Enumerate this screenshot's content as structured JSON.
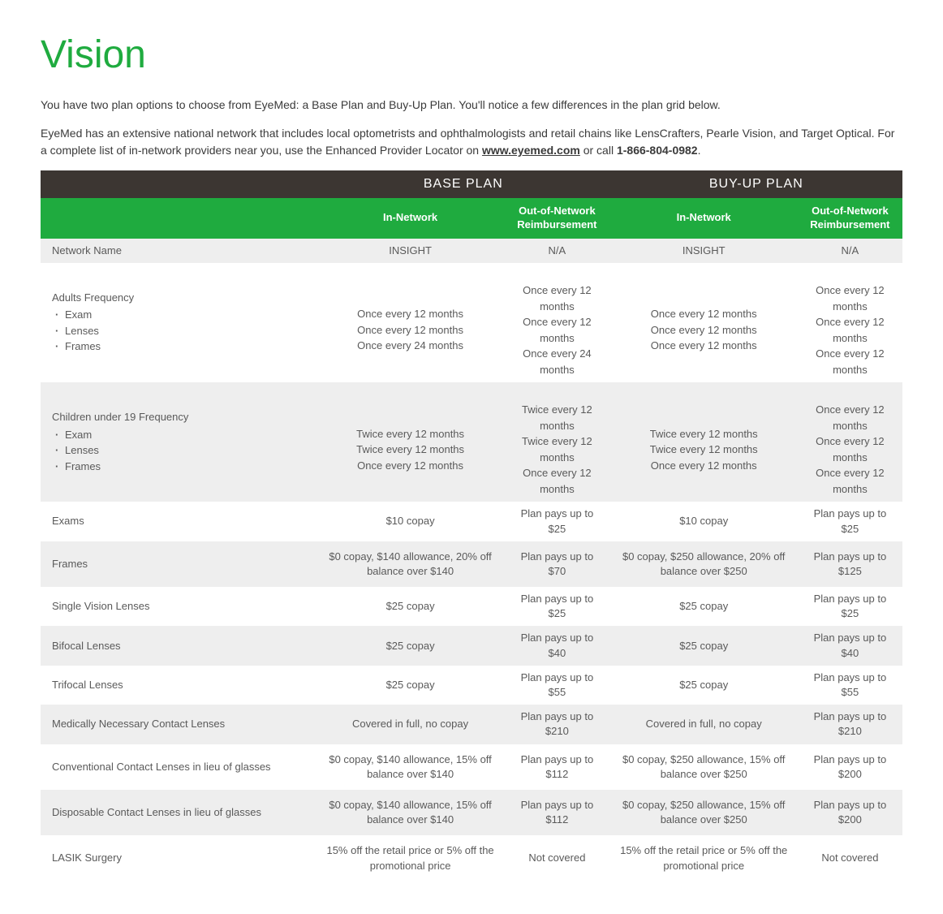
{
  "colors": {
    "title": "#1fab3f",
    "header_dark": "#3c3632",
    "header_green": "#1fab3f",
    "text": "#3a3a3a",
    "row_odd": "#eeeeee",
    "row_even": "#ffffff"
  },
  "title": "Vision",
  "intro": {
    "p1": "You have two plan options to choose from EyeMed: a Base Plan and Buy-Up Plan. You'll notice a few differences in the plan grid below.",
    "p2_a": "EyeMed has an extensive national network that includes local optometrists and ophthalmologists and retail chains like LensCrafters, Pearle Vision, and Target Optical. For a complete list of in-network providers near you, use the Enhanced Provider Locator on ",
    "link": "www.eyemed.com",
    "p2_b": " or call ",
    "phone": "1-866-804-0982",
    "p2_c": "."
  },
  "table": {
    "plan_headers": [
      "",
      "BASE PLAN",
      "BUY-UP PLAN"
    ],
    "sub_headers": [
      "",
      "In-Network",
      "Out-of-Network Reimbursement",
      "In-Network",
      "Out-of-Network Reimbursement"
    ],
    "rows": [
      {
        "label": "Network Name",
        "cells": [
          "INSIGHT",
          "N/A",
          "INSIGHT",
          "N/A"
        ],
        "cls": "odd"
      },
      {
        "label": "Adults Frequency",
        "sub": [
          "Exam",
          "Lenses",
          "Frames"
        ],
        "cells": [
          [
            "Once every 12 months",
            "Once every 12 months",
            "Once every 24 months"
          ],
          [
            "Once every 12 months",
            "Once every 12 months",
            "Once every 24 months"
          ],
          [
            "Once every 12 months",
            "Once every 12 months",
            "Once every 12 months"
          ],
          [
            "Once every 12 months",
            "Once every 12 months",
            "Once every 12 months"
          ]
        ],
        "cls": "even"
      },
      {
        "label": "Children under 19 Frequency",
        "sub": [
          "Exam",
          "Lenses",
          "Frames"
        ],
        "cells": [
          [
            "Twice every 12 months",
            "Twice every 12 months",
            "Once every 12 months"
          ],
          [
            "Twice every 12 months",
            "Twice every 12 months",
            "Once every 12 months"
          ],
          [
            "Twice every 12 months",
            "Twice every 12 months",
            "Once every 12 months"
          ],
          [
            "Once every 12 months",
            "Once every 12 months",
            "Once every 12 months"
          ]
        ],
        "cls": "odd"
      },
      {
        "label": "Exams",
        "cells": [
          "$10 copay",
          "Plan pays up to $25",
          "$10 copay",
          "Plan pays up to $25"
        ],
        "cls": "even"
      },
      {
        "label": "Frames",
        "cells": [
          "$0 copay, $140 allowance, 20% off balance over $140",
          "Plan pays up to $70",
          "$0 copay, $250 allowance, 20% off balance over $250",
          "Plan pays up to $125"
        ],
        "cls": "odd",
        "tall": true
      },
      {
        "label": "Single Vision Lenses",
        "cells": [
          "$25 copay",
          "Plan pays up to $25",
          "$25 copay",
          "Plan pays up to $25"
        ],
        "cls": "even"
      },
      {
        "label": "Bifocal Lenses",
        "cells": [
          "$25 copay",
          "Plan pays up to $40",
          "$25 copay",
          "Plan pays up to $40"
        ],
        "cls": "odd"
      },
      {
        "label": "Trifocal Lenses",
        "cells": [
          "$25 copay",
          "Plan pays up to $55",
          "$25 copay",
          "Plan pays up to $55"
        ],
        "cls": "even"
      },
      {
        "label": "Medically Necessary Contact Lenses",
        "cells": [
          "Covered in full, no copay",
          "Plan pays up to $210",
          "Covered in full, no copay",
          "Plan pays up to $210"
        ],
        "cls": "odd"
      },
      {
        "label": "Conventional Contact Lenses in lieu of glasses",
        "cells": [
          "$0 copay, $140 allowance, 15% off balance over $140",
          "Plan pays up to $112",
          "$0 copay, $250 allowance, 15% off balance over $250",
          "Plan pays up to $200"
        ],
        "cls": "even",
        "tall": true
      },
      {
        "label": "Disposable Contact Lenses in lieu of glasses",
        "cells": [
          "$0 copay, $140 allowance, 15% off balance over $140",
          "Plan pays up to $112",
          "$0 copay, $250 allowance, 15% off balance over $250",
          "Plan pays up to $200"
        ],
        "cls": "odd",
        "tall": true
      },
      {
        "label": "LASIK Surgery",
        "cells": [
          "15% off the retail price or 5% off the promotional price",
          "Not covered",
          "15% off the retail price or 5% off the promotional price",
          "Not covered"
        ],
        "cls": "even",
        "tall": true
      }
    ]
  }
}
